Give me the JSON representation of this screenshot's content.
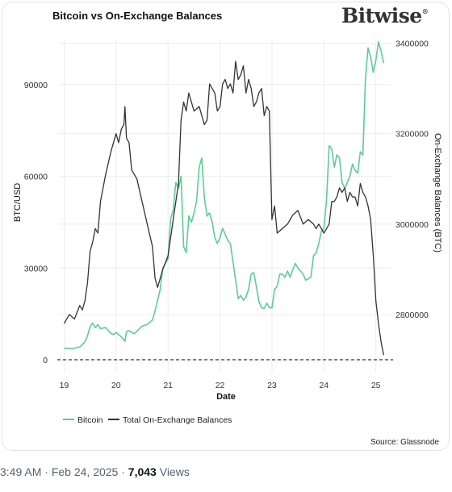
{
  "brand": {
    "logo": "Bitwise"
  },
  "source": "Source: Glassnode",
  "tweet": {
    "time": "3:49 AM",
    "date": "Feb 24, 2025",
    "views_count": "7,043",
    "views_label": "Views"
  },
  "colors": {
    "bitcoin": "#5ccd94",
    "balances": "#333333",
    "grid": "#ececec"
  },
  "chart_data": {
    "type": "line",
    "title": "Bitcoin vs On-Exchange Balances",
    "xlabel": "Date",
    "ylabel": "BTC/USD",
    "ylabel_right": "On-Exchange Balances (BTC)",
    "xlim": [
      18.9,
      25.3
    ],
    "ylim": [
      0,
      105000
    ],
    "ylim_right": [
      2700000,
      3410000
    ],
    "x_ticks": [
      19,
      20,
      21,
      22,
      23,
      24,
      25
    ],
    "x_tick_labels": [
      "19",
      "20",
      "21",
      "22",
      "23",
      "24",
      "25"
    ],
    "y_ticks": [
      0,
      30000,
      60000,
      90000
    ],
    "y_tick_labels": [
      "0",
      "30000",
      "60000",
      "90000"
    ],
    "y_ticks_right": [
      2800000,
      3000000,
      3200000,
      3400000
    ],
    "y_tick_labels_right": [
      "2800000",
      "3000000",
      "3200000",
      "3400000"
    ],
    "grid": true,
    "legend": "bottom-left",
    "reference_line": {
      "y": 0,
      "style": "dashed"
    },
    "series": [
      {
        "name": "Bitcoin",
        "axis": "left",
        "x": [
          19.0,
          19.15,
          19.3,
          19.4,
          19.45,
          19.5,
          19.55,
          19.6,
          19.65,
          19.7,
          19.8,
          19.9,
          19.95,
          20.0,
          20.1,
          20.17,
          20.2,
          20.25,
          20.35,
          20.4,
          20.5,
          20.6,
          20.7,
          20.75,
          20.8,
          20.85,
          20.9,
          21.0,
          21.05,
          21.1,
          21.15,
          21.2,
          21.25,
          21.3,
          21.35,
          21.4,
          21.45,
          21.5,
          21.55,
          21.6,
          21.65,
          21.7,
          21.75,
          21.8,
          21.85,
          21.9,
          21.95,
          22.0,
          22.05,
          22.1,
          22.15,
          22.2,
          22.25,
          22.3,
          22.35,
          22.4,
          22.45,
          22.5,
          22.55,
          22.6,
          22.65,
          22.7,
          22.75,
          22.8,
          22.85,
          22.9,
          22.95,
          23.0,
          23.05,
          23.1,
          23.15,
          23.2,
          23.25,
          23.3,
          23.35,
          23.4,
          23.45,
          23.5,
          23.55,
          23.6,
          23.65,
          23.7,
          23.75,
          23.8,
          23.85,
          23.9,
          23.95,
          24.0,
          24.05,
          24.1,
          24.15,
          24.2,
          24.25,
          24.3,
          24.35,
          24.4,
          24.45,
          24.5,
          24.55,
          24.6,
          24.65,
          24.7,
          24.75,
          24.8,
          24.85,
          24.9,
          24.95,
          25.0,
          25.05,
          25.1,
          25.15
        ],
        "values": [
          3800,
          3600,
          4200,
          5800,
          7800,
          10800,
          12000,
          10500,
          11500,
          10200,
          10500,
          8600,
          8200,
          8900,
          7500,
          6000,
          9200,
          9500,
          8500,
          9300,
          11000,
          11500,
          13000,
          16000,
          19500,
          23000,
          30000,
          33000,
          46000,
          49000,
          58000,
          56000,
          60000,
          37000,
          35000,
          47000,
          45000,
          48000,
          52000,
          63000,
          66000,
          53000,
          47000,
          48000,
          45000,
          40000,
          38000,
          40000,
          43000,
          41000,
          39000,
          38000,
          32000,
          26000,
          20000,
          21000,
          19500,
          20500,
          23000,
          28000,
          28500,
          24000,
          19000,
          17000,
          16800,
          18500,
          17000,
          17000,
          23000,
          24000,
          28000,
          28000,
          27000,
          29000,
          27000,
          29500,
          31500,
          30000,
          29000,
          28000,
          26000,
          26500,
          27000,
          34000,
          35000,
          38000,
          42000,
          43000,
          52000,
          70000,
          69000,
          63000,
          67000,
          66000,
          58000,
          56000,
          58000,
          60000,
          64000,
          62000,
          61000,
          68000,
          67000,
          92000,
          102000,
          99000,
          94000,
          98000,
          104000,
          101000,
          97000
        ]
      },
      {
        "name": "Total On-Exchange Balances",
        "axis": "right",
        "x": [
          19.0,
          19.1,
          19.2,
          19.3,
          19.35,
          19.4,
          19.45,
          19.5,
          19.55,
          19.6,
          19.65,
          19.7,
          19.8,
          19.9,
          20.0,
          20.05,
          20.1,
          20.15,
          20.17,
          20.2,
          20.25,
          20.3,
          20.35,
          20.4,
          20.5,
          20.6,
          20.7,
          20.75,
          20.8,
          20.85,
          20.9,
          21.0,
          21.1,
          21.2,
          21.25,
          21.3,
          21.35,
          21.4,
          21.5,
          21.6,
          21.7,
          21.75,
          21.8,
          21.85,
          21.9,
          21.95,
          22.0,
          22.05,
          22.1,
          22.15,
          22.2,
          22.25,
          22.3,
          22.35,
          22.4,
          22.45,
          22.5,
          22.55,
          22.6,
          22.65,
          22.7,
          22.75,
          22.8,
          22.85,
          22.9,
          22.95,
          23.0,
          23.05,
          23.1,
          23.2,
          23.3,
          23.4,
          23.5,
          23.6,
          23.7,
          23.8,
          23.85,
          23.9,
          24.0,
          24.05,
          24.1,
          24.15,
          24.2,
          24.25,
          24.3,
          24.35,
          24.4,
          24.45,
          24.5,
          24.55,
          24.6,
          24.65,
          24.7,
          24.75,
          24.8,
          24.85,
          24.9,
          24.95,
          25.0,
          25.05,
          25.1,
          25.15
        ],
        "values": [
          2780000,
          2800000,
          2790000,
          2820000,
          2810000,
          2830000,
          2870000,
          2940000,
          2960000,
          2990000,
          2980000,
          3050000,
          3110000,
          3160000,
          3200000,
          3180000,
          3210000,
          3220000,
          3260000,
          3190000,
          3180000,
          3120000,
          3110000,
          3100000,
          3050000,
          3000000,
          2950000,
          2880000,
          2860000,
          2880000,
          2900000,
          2930000,
          3010000,
          3090000,
          3230000,
          3270000,
          3250000,
          3290000,
          3250000,
          3260000,
          3220000,
          3230000,
          3310000,
          3300000,
          3290000,
          3250000,
          3260000,
          3310000,
          3320000,
          3300000,
          3310000,
          3290000,
          3360000,
          3320000,
          3330000,
          3350000,
          3290000,
          3320000,
          3300000,
          3260000,
          3270000,
          3290000,
          3300000,
          3240000,
          3260000,
          3250000,
          3010000,
          3040000,
          2980000,
          2990000,
          3000000,
          3020000,
          3030000,
          3000000,
          3010000,
          3000000,
          2990000,
          3000000,
          2980000,
          2990000,
          3000000,
          3050000,
          3050000,
          3060000,
          3080000,
          3070000,
          3080000,
          3050000,
          3070000,
          3060000,
          3060000,
          3040000,
          3090000,
          3070000,
          3060000,
          3040000,
          3010000,
          2930000,
          2830000,
          2780000,
          2740000,
          2710000
        ]
      }
    ]
  }
}
